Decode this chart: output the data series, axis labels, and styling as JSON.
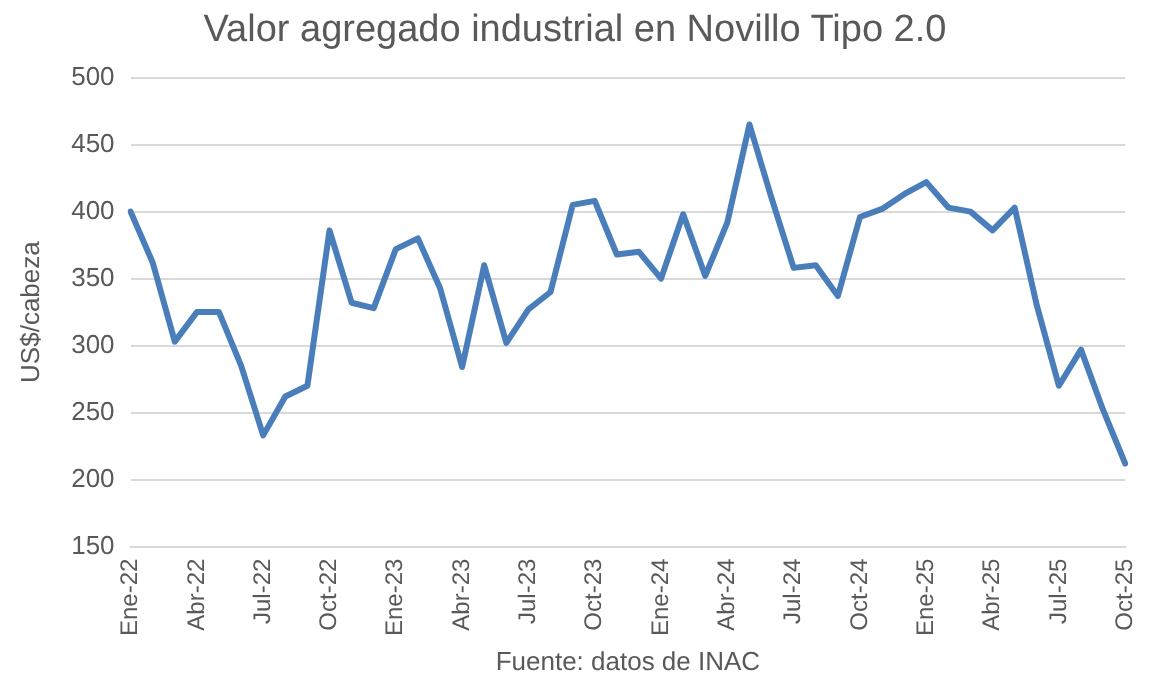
{
  "chart_data": {
    "type": "line",
    "title": "Valor agregado industrial en Novillo Tipo 2.0",
    "ylabel": "US$/cabeza",
    "annotations": [
      "Fuente: datos de INAC"
    ],
    "categories": [
      "Ene-22",
      null,
      null,
      "Abr-22",
      null,
      null,
      "Jul-22",
      null,
      null,
      "Oct-22",
      null,
      null,
      "Ene-23",
      null,
      null,
      "Abr-23",
      null,
      null,
      "Jul-23",
      null,
      null,
      "Oct-23",
      null,
      null,
      "Ene-24",
      null,
      null,
      "Abr-24",
      null,
      null,
      "Jul-24",
      null,
      null,
      "Oct-24",
      null,
      null,
      "Ene-25",
      null,
      null,
      "Abr-25",
      null,
      null,
      "Jul-25",
      null,
      null,
      "Oct-25"
    ],
    "series": [
      {
        "color": "#4a7ebb",
        "values": [
          400,
          362,
          303,
          325,
          325,
          285,
          233,
          262,
          270,
          386,
          332,
          328,
          372,
          380,
          343,
          284,
          360,
          302,
          327,
          340,
          405,
          408,
          368,
          370,
          350,
          398,
          352,
          392,
          465,
          410,
          358,
          360,
          337,
          396,
          402,
          413,
          422,
          403,
          400,
          386,
          403,
          330,
          270,
          297,
          252,
          212
        ]
      }
    ],
    "ylim": [
      150,
      500
    ],
    "yticks": [
      150,
      200,
      250,
      300,
      350,
      400,
      450,
      500
    ],
    "grid": "y",
    "legend": false,
    "marker": "none",
    "line_style": "solid"
  }
}
